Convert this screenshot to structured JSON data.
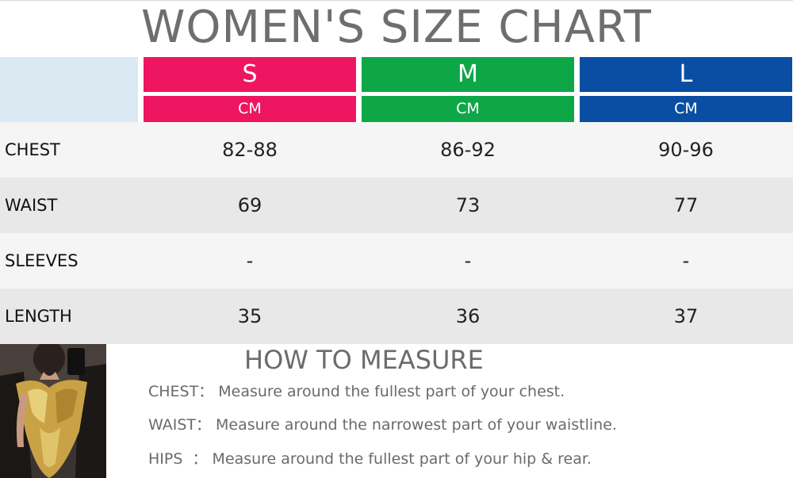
{
  "title": "WOMEN'S SIZE CHART",
  "colors": {
    "s": "#ee1660",
    "m": "#0ea748",
    "l": "#0a4ea4",
    "corner": "#dbeaf2"
  },
  "sizes": [
    {
      "label": "S",
      "unit": "CM"
    },
    {
      "label": "M",
      "unit": "CM"
    },
    {
      "label": "L",
      "unit": "CM"
    }
  ],
  "rows": [
    {
      "label": "CHEST",
      "values": [
        "82-88",
        "86-92",
        "90-96"
      ]
    },
    {
      "label": "WAIST",
      "values": [
        "69",
        "73",
        "77"
      ]
    },
    {
      "label": "SLEEVES",
      "values": [
        "-",
        "-",
        "-"
      ]
    },
    {
      "label": "LENGTH",
      "values": [
        "35",
        "36",
        "37"
      ]
    }
  ],
  "how_to_measure": {
    "title": "HOW TO MEASURE",
    "items": [
      {
        "key": "CHEST：",
        "text": "Measure around the fullest part of your chest."
      },
      {
        "key": "WAIST：",
        "text": "Measure around the narrowest part of your waistline."
      },
      {
        "key": "HIPS  ：",
        "text": "Measure around the fullest part of your hip & rear."
      }
    ]
  }
}
